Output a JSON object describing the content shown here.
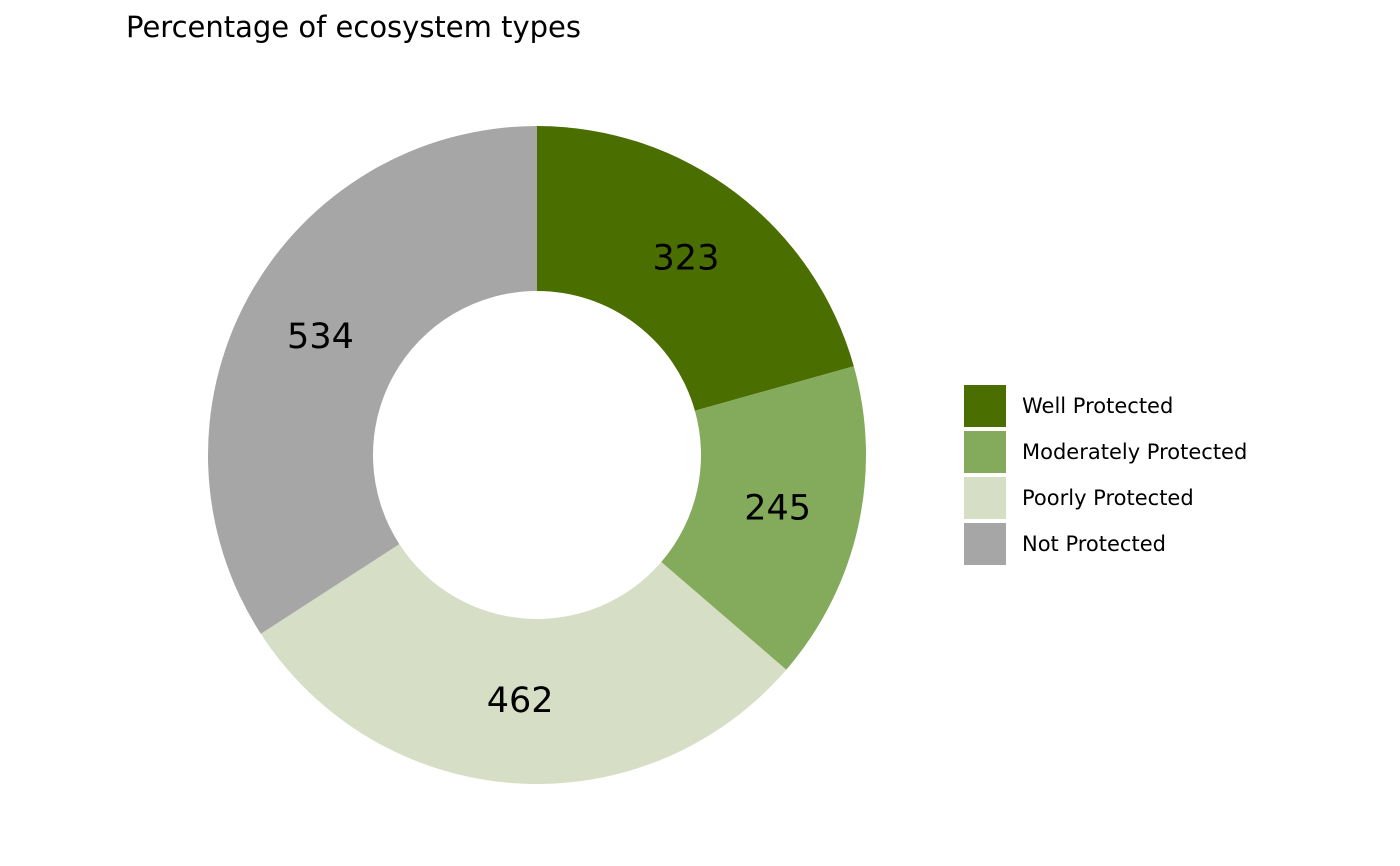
{
  "chart_data": {
    "type": "pie",
    "style": "donut",
    "title": "Percentage of ecosystem types",
    "legend_position": "right",
    "start": "top",
    "direction": "clockwise",
    "slices": [
      {
        "label": "Well Protected",
        "value": 323,
        "display": "323",
        "color": "#4a6e00"
      },
      {
        "label": "Moderately Protected",
        "value": 245,
        "display": "245",
        "color": "#84aa5b"
      },
      {
        "label": "Poorly Protected",
        "value": 462,
        "display": "462",
        "color": "#d6dec5"
      },
      {
        "label": "Not Protected",
        "value": 534,
        "display": "534",
        "color": "#a6a6a6"
      }
    ]
  }
}
